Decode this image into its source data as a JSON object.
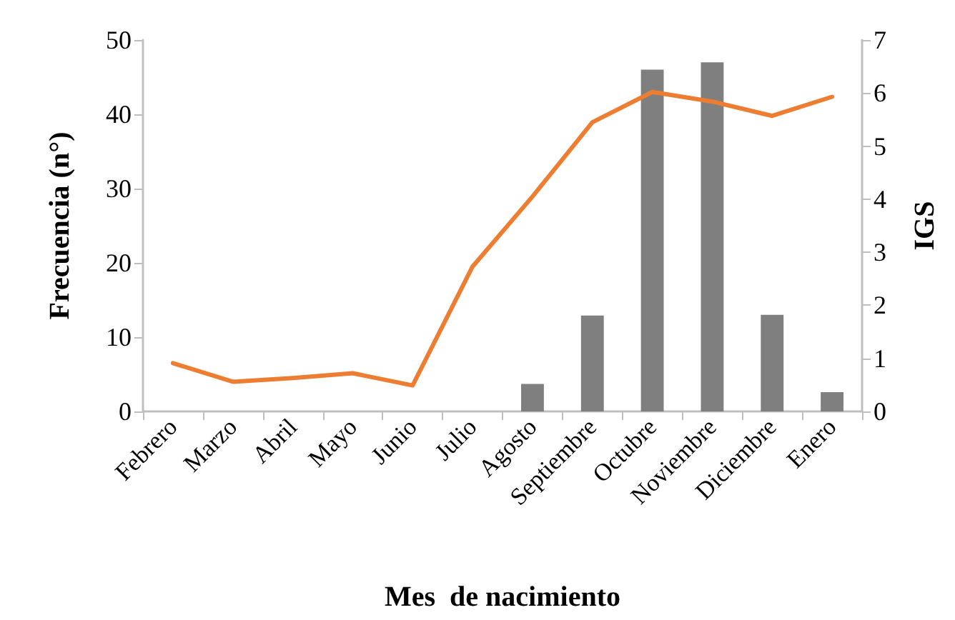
{
  "chart_data": {
    "type": "bar",
    "xlabel": "Mes  de nacimiento",
    "ylabel": "Frecuencia (n°)",
    "y2label": "IGS",
    "categories": [
      "Febrero",
      "Marzo",
      "Abril",
      "Mayo",
      "Junio",
      "Julio",
      "Agosto",
      "Septiembre",
      "Octubre",
      "Noviembre",
      "Diciembre",
      "Enero"
    ],
    "series": [
      {
        "color": "#7f7f7f",
        "values": [
          0,
          0,
          0,
          0,
          0,
          0,
          3.7,
          12.9,
          46,
          47,
          13,
          2.6
        ]
      },
      {
        "type": "line",
        "axis": "y2",
        "color": "#ed7d31",
        "values": [
          0.91,
          0.56,
          0.63,
          0.72,
          0.49,
          2.73,
          4.05,
          5.45,
          6.02,
          5.84,
          5.57,
          5.93
        ]
      }
    ],
    "ylim": [
      0,
      50
    ],
    "yticks": [
      0,
      10,
      20,
      30,
      40,
      50
    ],
    "y2lim": [
      0,
      7
    ],
    "y2ticks": [
      0,
      1,
      2,
      3,
      4,
      5,
      6,
      7
    ],
    "grid": false,
    "marker": "none"
  }
}
